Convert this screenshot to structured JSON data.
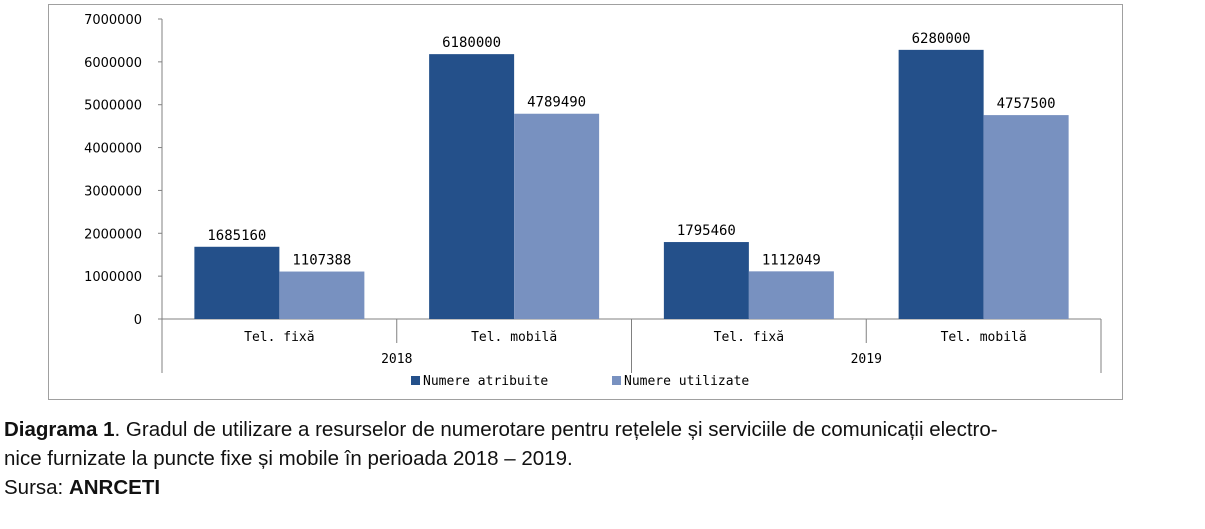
{
  "chart_data": {
    "type": "bar",
    "groups": [
      {
        "group": "2018",
        "categories": [
          "Tel. fixă",
          "Tel. mobilă"
        ]
      },
      {
        "group": "2019",
        "categories": [
          "Tel. fixă",
          "Tel. mobilă"
        ]
      }
    ],
    "categories": [
      "Tel. fixă",
      "Tel. mobilă",
      "Tel. fixă",
      "Tel. mobilă"
    ],
    "series": [
      {
        "name": "Numere atribuite",
        "values": [
          1685160,
          6180000,
          1795460,
          6280000
        ],
        "color": "#24508a"
      },
      {
        "name": "Numere utilizate",
        "values": [
          1107388,
          4789490,
          1112049,
          4757500
        ],
        "color": "#7891c0"
      }
    ],
    "value_labels": [
      [
        "1685160",
        "6180000",
        "1795460",
        "6280000"
      ],
      [
        "1107388",
        "4789490",
        "1112049",
        "4757500"
      ]
    ],
    "ylim": [
      0,
      7000000
    ],
    "yticks": [
      "0",
      "1000000",
      "2000000",
      "3000000",
      "4000000",
      "5000000",
      "6000000",
      "7000000"
    ],
    "grid": false,
    "legend_position": "bottom"
  },
  "caption": {
    "label": "Diagrama 1",
    "text_line1": ". Gradul de utilizare a resurselor de numerotare pentru rețelele și serviciile de comunicații electro-",
    "text_line2": "nice furnizate la puncte fixe și mobile în perioada 2018 – 2019.",
    "source_prefix": "Sursa: ",
    "source": "ANRCETI"
  }
}
